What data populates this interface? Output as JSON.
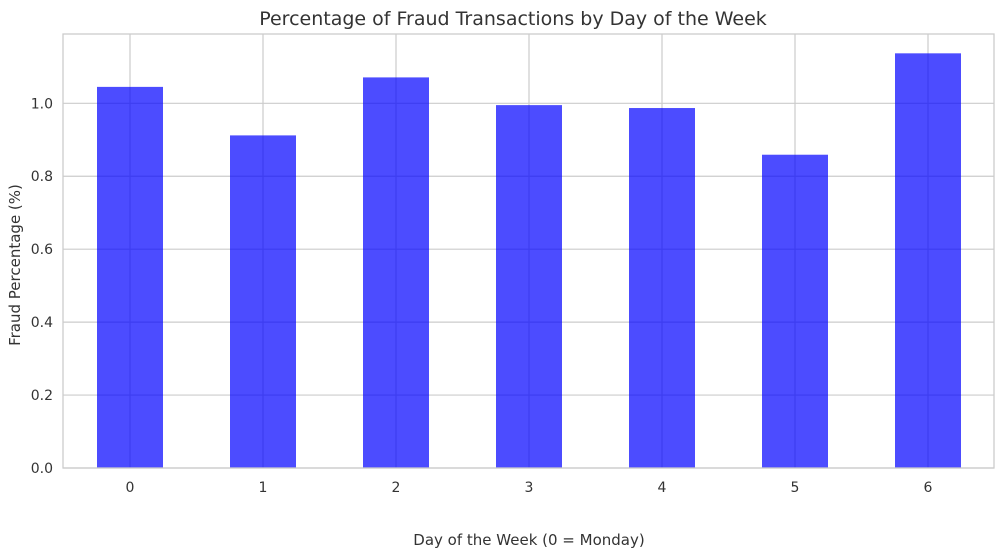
{
  "chart_data": {
    "type": "bar",
    "title": "Percentage of Fraud Transactions by Day of the Week",
    "xlabel": "Day of the Week (0 = Monday)",
    "ylabel": "Fraud Percentage (%)",
    "categories": [
      "0",
      "1",
      "2",
      "3",
      "4",
      "5",
      "6"
    ],
    "values": [
      1.045,
      0.912,
      1.071,
      0.995,
      0.987,
      0.859,
      1.137
    ],
    "ylim": [
      0,
      1.19
    ],
    "yticks": [
      0.0,
      0.2,
      0.4,
      0.6,
      0.8,
      1.0
    ],
    "ytick_labels": [
      "0.0",
      "0.2",
      "0.4",
      "0.6",
      "0.8",
      "1.0"
    ],
    "grid": true,
    "colors": {
      "bar": "#0000ff",
      "grid": "#cccccc",
      "axes": "#cccccc",
      "text": "#333333"
    }
  }
}
